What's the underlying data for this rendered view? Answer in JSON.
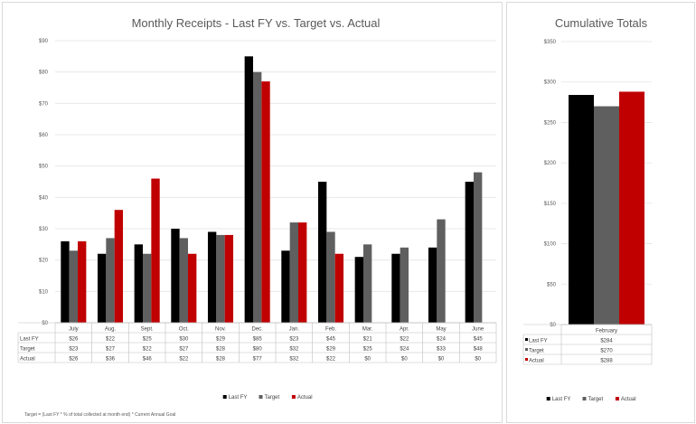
{
  "colors": {
    "last_fy": "#000000",
    "target": "#5f5f5f",
    "actual": "#c00000"
  },
  "chart_data": [
    {
      "type": "bar",
      "title": "Monthly Receipts -  Last FY vs. Target vs. Actual",
      "categories": [
        "July",
        "Aug.",
        "Sept.",
        "Oct.",
        "Nov.",
        "Dec.",
        "Jan.",
        "Feb.",
        "Mar.",
        "Apr.",
        "May",
        "June"
      ],
      "series": [
        {
          "name": "Last FY",
          "values": [
            26,
            22,
            25,
            30,
            29,
            85,
            23,
            45,
            21,
            22,
            24,
            45
          ],
          "labels": [
            "$26",
            "$22",
            "$25",
            "$30",
            "$29",
            "$85",
            "$23",
            "$45",
            "$21",
            "$22",
            "$24",
            "$45"
          ]
        },
        {
          "name": "Target",
          "values": [
            23,
            27,
            22,
            27,
            28,
            80,
            32,
            29,
            25,
            24,
            33,
            48
          ],
          "labels": [
            "$23",
            "$27",
            "$22",
            "$27",
            "$28",
            "$80",
            "$32",
            "$29",
            "$25",
            "$24",
            "$33",
            "$48"
          ]
        },
        {
          "name": "Actual",
          "values": [
            26,
            36,
            46,
            22,
            28,
            77,
            32,
            22,
            0,
            0,
            0,
            0
          ],
          "labels": [
            "$26",
            "$36",
            "$46",
            "$22",
            "$28",
            "$77",
            "$32",
            "$22",
            "$0",
            "$0",
            "$0",
            "$0"
          ]
        }
      ],
      "ylim": [
        0,
        90
      ],
      "yticks": [
        "$0",
        "$10",
        "$20",
        "$30",
        "$40",
        "$50",
        "$60",
        "$70",
        "$80",
        "$90"
      ],
      "grid": true,
      "legend_position": "bottom",
      "footnote": "Target = (Last FY * % of total collected at month end) * Current Annual Goal"
    },
    {
      "type": "bar",
      "title": "Cumulative Totals",
      "categories": [
        "February"
      ],
      "series": [
        {
          "name": "Last FY",
          "values": [
            284
          ],
          "labels": [
            "$284"
          ]
        },
        {
          "name": "Target",
          "values": [
            270
          ],
          "labels": [
            "$270"
          ]
        },
        {
          "name": "Actual",
          "values": [
            288
          ],
          "labels": [
            "$288"
          ]
        }
      ],
      "ylim": [
        0,
        350
      ],
      "yticks": [
        "$0",
        "$50",
        "$100",
        "$150",
        "$200",
        "$250",
        "$300",
        "$350"
      ],
      "grid": true,
      "legend_position": "bottom"
    }
  ]
}
